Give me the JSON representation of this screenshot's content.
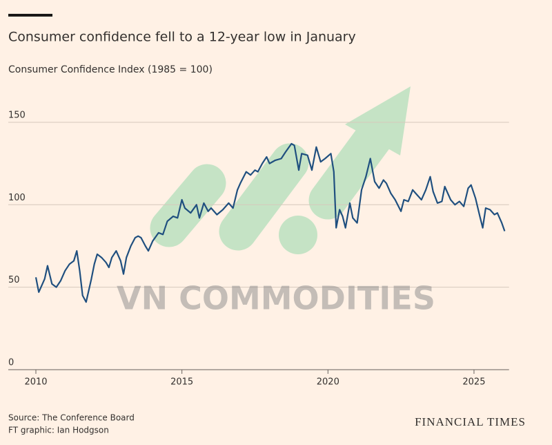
{
  "chart_data": {
    "type": "line",
    "title": "Consumer confidence fell to a 12-year low in January",
    "subtitle": "Consumer Confidence Index (1985 = 100)",
    "source": "Source: The Conference Board",
    "credit": "FT graphic: Ian Hodgson",
    "brand": "FINANCIAL TIMES",
    "watermark": "VN COMMODITIES",
    "xlim": [
      2010,
      2026.2
    ],
    "xticks": [
      2010,
      2015,
      2020,
      2025
    ],
    "ylim": [
      0,
      160
    ],
    "yticks": [
      0,
      50,
      100,
      150
    ],
    "grid": true,
    "series": [
      {
        "name": "Consumer Confidence Index",
        "color": "#1f4f7f",
        "x": [
          2010.0,
          2010.1,
          2010.3,
          2010.4,
          2010.55,
          2010.7,
          2010.85,
          2011.0,
          2011.15,
          2011.3,
          2011.4,
          2011.5,
          2011.6,
          2011.72,
          2011.9,
          2012.0,
          2012.1,
          2012.25,
          2012.4,
          2012.5,
          2012.6,
          2012.75,
          2012.9,
          2013.0,
          2013.1,
          2013.25,
          2013.4,
          2013.5,
          2013.6,
          2013.75,
          2013.85,
          2014.0,
          2014.2,
          2014.35,
          2014.5,
          2014.7,
          2014.85,
          2015.0,
          2015.1,
          2015.3,
          2015.5,
          2015.6,
          2015.75,
          2015.9,
          2016.0,
          2016.2,
          2016.4,
          2016.6,
          2016.75,
          2016.9,
          2017.0,
          2017.2,
          2017.35,
          2017.5,
          2017.6,
          2017.75,
          2017.9,
          2018.0,
          2018.2,
          2018.4,
          2018.55,
          2018.75,
          2018.85,
          2019.0,
          2019.1,
          2019.3,
          2019.45,
          2019.6,
          2019.75,
          2019.9,
          2020.1,
          2020.2,
          2020.28,
          2020.4,
          2020.5,
          2020.6,
          2020.75,
          2020.85,
          2021.0,
          2021.15,
          2021.3,
          2021.45,
          2021.6,
          2021.75,
          2021.9,
          2022.0,
          2022.15,
          2022.3,
          2022.5,
          2022.6,
          2022.75,
          2022.9,
          2023.0,
          2023.2,
          2023.35,
          2023.5,
          2023.6,
          2023.75,
          2023.9,
          2024.0,
          2024.2,
          2024.35,
          2024.5,
          2024.65,
          2024.8,
          2024.9,
          2025.05,
          2025.2,
          2025.3,
          2025.4,
          2025.55,
          2025.7,
          2025.8,
          2025.95,
          2026.05
        ],
        "values": [
          56,
          47,
          55,
          63,
          52,
          50,
          54,
          60,
          64,
          66,
          72,
          60,
          45,
          41,
          55,
          64,
          70,
          68,
          65,
          62,
          68,
          72,
          66,
          58,
          68,
          75,
          80,
          81,
          80,
          75,
          72,
          78,
          83,
          82,
          90,
          93,
          92,
          103,
          98,
          95,
          100,
          92,
          101,
          96,
          98,
          94,
          97,
          101,
          98,
          109,
          113,
          120,
          118,
          121,
          120,
          125,
          129,
          125,
          127,
          128,
          132,
          137,
          136,
          121,
          131,
          130,
          121,
          135,
          126,
          128,
          131,
          120,
          86,
          97,
          93,
          86,
          101,
          92,
          89,
          109,
          117,
          128,
          114,
          110,
          115,
          113,
          107,
          103,
          96,
          103,
          102,
          109,
          107,
          103,
          109,
          117,
          108,
          101,
          102,
          111,
          103,
          100,
          102,
          99,
          110,
          112,
          104,
          93,
          86,
          98,
          97,
          94,
          95,
          89,
          84
        ]
      }
    ]
  }
}
